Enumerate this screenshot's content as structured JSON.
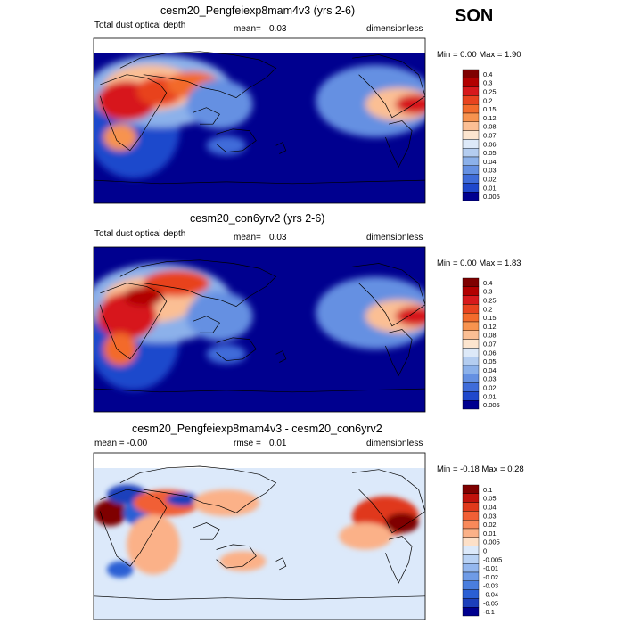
{
  "season": "SON",
  "panels": [
    {
      "title": "cesm20_Pengfeiexp8mam4v3 (yrs 2-6)",
      "left_label": "Total dust optical depth",
      "mean_label": "mean=",
      "mean_value": "0.03",
      "units": "dimensionless",
      "minmax": "Min =  0.00 Max =  1.90",
      "levels": [
        "0.4",
        "0.3",
        "0.25",
        "0.2",
        "0.15",
        "0.12",
        "0.08",
        "0.07",
        "0.06",
        "0.05",
        "0.04",
        "0.03",
        "0.02",
        "0.01",
        "0.005"
      ]
    },
    {
      "title": "cesm20_con6yrv2 (yrs 2-6)",
      "left_label": "Total dust optical depth",
      "mean_label": "mean=",
      "mean_value": "0.03",
      "units": "dimensionless",
      "minmax": "Min =  0.00 Max =  1.83",
      "levels": [
        "0.4",
        "0.3",
        "0.25",
        "0.2",
        "0.15",
        "0.12",
        "0.08",
        "0.07",
        "0.06",
        "0.05",
        "0.04",
        "0.03",
        "0.02",
        "0.01",
        "0.005"
      ]
    },
    {
      "title": "cesm20_Pengfeiexp8mam4v3 - cesm20_con6yrv2",
      "left_label": "mean =  -0.00",
      "mid_label": "rmse =",
      "mid_value": "0.01",
      "units": "dimensionless",
      "minmax": "Min =  -0.18 Max =  0.28",
      "levels": [
        "0.1",
        "0.05",
        "0.04",
        "0.03",
        "0.02",
        "0.01",
        "0.005",
        "0",
        "-0.005",
        "-0.01",
        "-0.02",
        "-0.03",
        "-0.04",
        "-0.05",
        "-0.1"
      ]
    }
  ],
  "colors": {
    "abs_scale": [
      "#7f0000",
      "#b20000",
      "#d7191c",
      "#e8431f",
      "#f36b2c",
      "#f7934f",
      "#fbbf94",
      "#fce5cf",
      "#dde9f8",
      "#b4cdf0",
      "#8cb1ea",
      "#6590e2",
      "#3f6cd9",
      "#1f48cc",
      "#00008f"
    ],
    "diff_scale": [
      "#7f0000",
      "#c0120c",
      "#e0391b",
      "#f15f35",
      "#f8895a",
      "#fbb188",
      "#fde0c8",
      "#dce9fa",
      "#b9d2f4",
      "#94b7ee",
      "#6f9be6",
      "#4a7ede",
      "#2a5fd4",
      "#1c3fbb",
      "#00008f"
    ],
    "ocean_abs": "#00008f",
    "ocean_diff": "#dce9fa"
  },
  "chart_data": [
    {
      "type": "heatmap",
      "title": "cesm20_Pengfeiexp8mam4v3 (yrs 2-6)",
      "variable": "Total dust optical depth",
      "mean": 0.03,
      "min": 0.0,
      "max": 1.9,
      "units": "dimensionless",
      "levels": [
        0.005,
        0.01,
        0.02,
        0.03,
        0.04,
        0.05,
        0.06,
        0.07,
        0.08,
        0.12,
        0.15,
        0.2,
        0.25,
        0.3,
        0.4
      ]
    },
    {
      "type": "heatmap",
      "title": "cesm20_con6yrv2 (yrs 2-6)",
      "variable": "Total dust optical depth",
      "mean": 0.03,
      "min": 0.0,
      "max": 1.83,
      "units": "dimensionless",
      "levels": [
        0.005,
        0.01,
        0.02,
        0.03,
        0.04,
        0.05,
        0.06,
        0.07,
        0.08,
        0.12,
        0.15,
        0.2,
        0.25,
        0.3,
        0.4
      ]
    },
    {
      "type": "heatmap",
      "title": "cesm20_Pengfeiexp8mam4v3 - cesm20_con6yrv2",
      "mean": -0.0,
      "rmse": 0.01,
      "min": -0.18,
      "max": 0.28,
      "units": "dimensionless",
      "levels": [
        -0.1,
        -0.05,
        -0.04,
        -0.03,
        -0.02,
        -0.01,
        -0.005,
        0,
        0.005,
        0.01,
        0.02,
        0.03,
        0.04,
        0.05,
        0.1
      ]
    }
  ]
}
